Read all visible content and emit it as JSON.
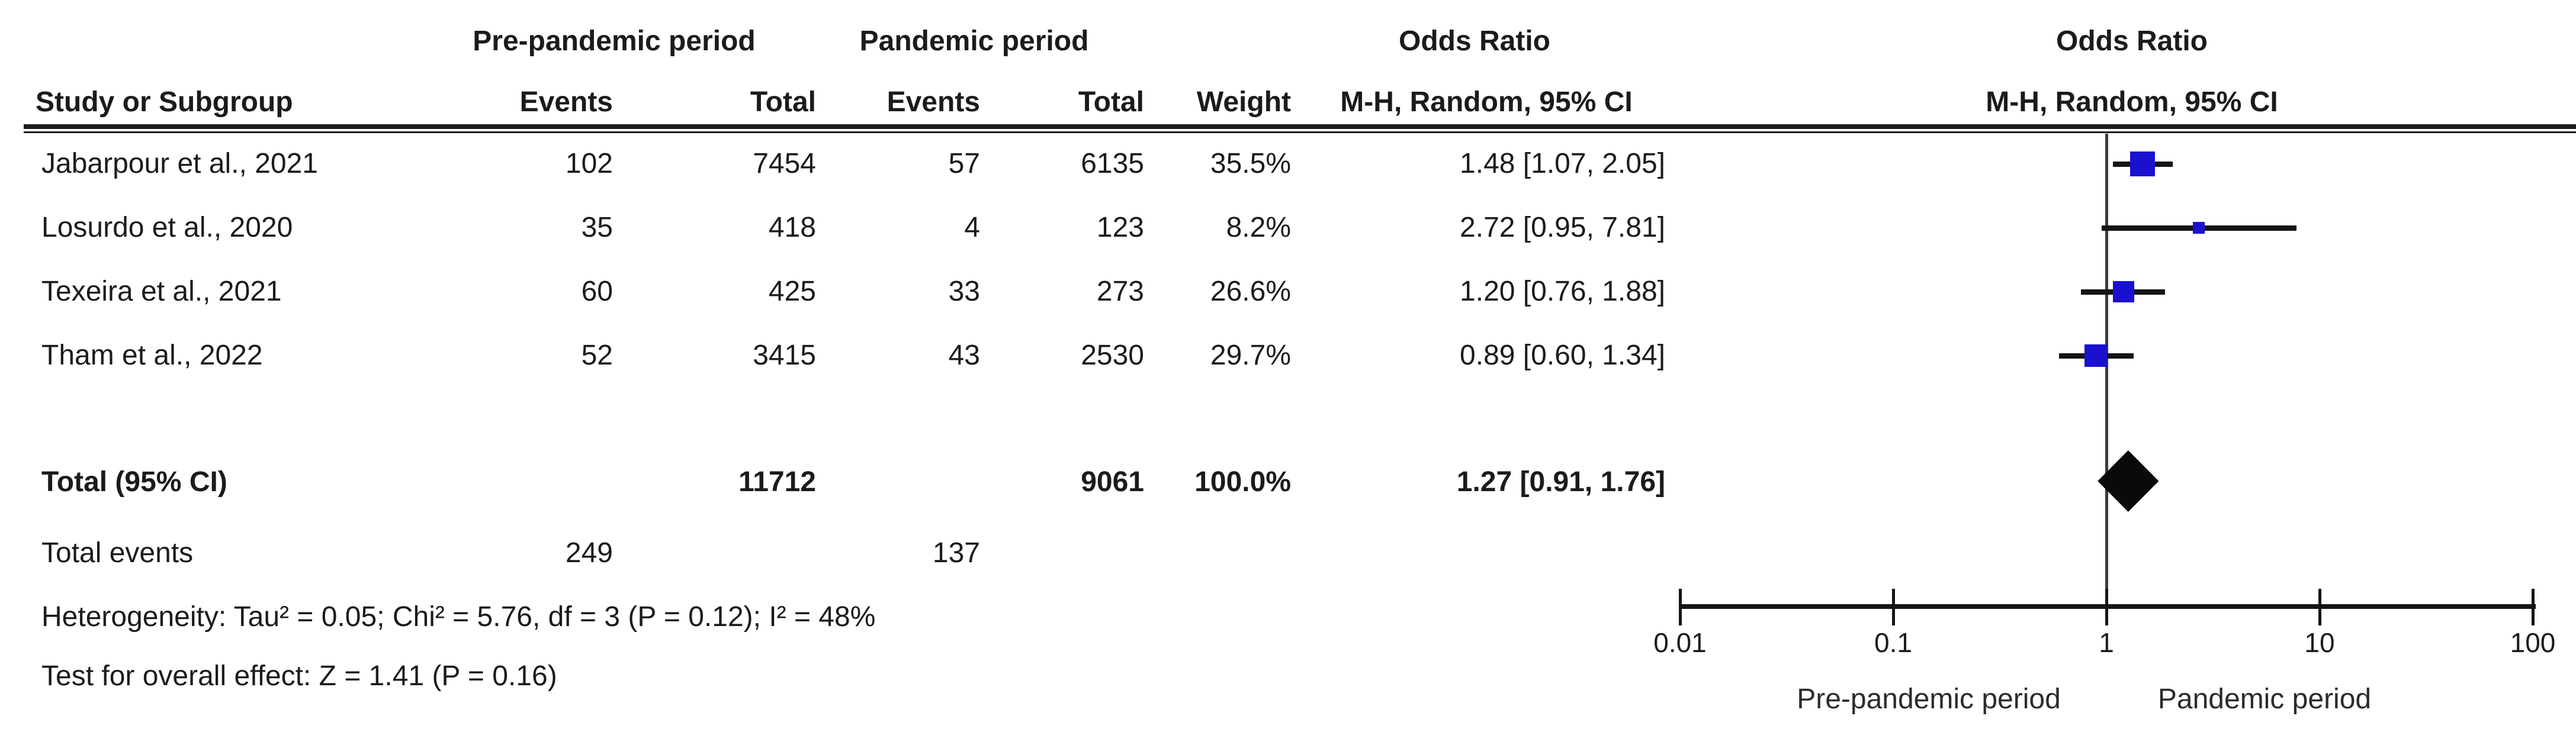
{
  "colors": {
    "square_blue": "#1a10d0",
    "ci_line": "#141414",
    "diamond": "#0a0a0a",
    "axis_line": "#151515",
    "center_line": "#3a3a3a",
    "text": "#1b1b1b"
  },
  "table": {
    "group1_header": "Pre-pandemic period",
    "group2_header": "Pandemic period",
    "or_header": "Odds Ratio",
    "or_subheader": "M-H, Random, 95% CI",
    "plot_or_header": "Odds Ratio",
    "plot_or_subheader": "M-H, Random, 95% CI",
    "col_study": "Study or Subgroup",
    "col_events1": "Events",
    "col_total1": "Total",
    "col_events2": "Events",
    "col_total2": "Total",
    "col_weight": "Weight",
    "rows": [
      {
        "study": "Jabarpour et al., 2021",
        "events1": "102",
        "total1": "7454",
        "events2": "57",
        "total2": "6135",
        "weight": "35.5%",
        "or_ci": "1.48 [1.07, 2.05]"
      },
      {
        "study": "Losurdo et al., 2020",
        "events1": "35",
        "total1": "418",
        "events2": "4",
        "total2": "123",
        "weight": "8.2%",
        "or_ci": "2.72 [0.95, 7.81]"
      },
      {
        "study": "Texeira et al., 2021",
        "events1": "60",
        "total1": "425",
        "events2": "33",
        "total2": "273",
        "weight": "26.6%",
        "or_ci": "1.20 [0.76, 1.88]"
      },
      {
        "study": "Tham et al., 2022",
        "events1": "52",
        "total1": "3415",
        "events2": "43",
        "total2": "2530",
        "weight": "29.7%",
        "or_ci": "0.89 [0.60, 1.34]"
      }
    ],
    "total_row": {
      "label": "Total (95% CI)",
      "total1": "11712",
      "total2": "9061",
      "weight": "100.0%",
      "or_ci": "1.27 [0.91, 1.76]"
    },
    "total_events": {
      "label": "Total events",
      "events1": "249",
      "events2": "137"
    },
    "heterogeneity": "Heterogeneity: Tau² = 0.05; Chi² = 5.76, df = 3 (P = 0.12); I² = 48%",
    "overall_effect": "Test for overall effect: Z = 1.41 (P = 0.16)"
  },
  "chart_data": {
    "type": "forest",
    "x_scale": "log10",
    "xlim": [
      0.01,
      100
    ],
    "axis_ticks": [
      0.01,
      0.1,
      1,
      10,
      100
    ],
    "axis_tick_labels": [
      "0.01",
      "0.1",
      "1",
      "10",
      "100"
    ],
    "null_line": 1,
    "favours_left": "Pre-pandemic period",
    "favours_right": "Pandemic period",
    "effect_measure": "Odds Ratio (M-H, Random, 95% CI)",
    "studies": [
      {
        "name": "Jabarpour et al., 2021",
        "or": 1.48,
        "ci_low": 1.07,
        "ci_high": 2.05,
        "weight_pct": 35.5
      },
      {
        "name": "Losurdo et al., 2020",
        "or": 2.72,
        "ci_low": 0.95,
        "ci_high": 7.81,
        "weight_pct": 8.2
      },
      {
        "name": "Texeira et al., 2021",
        "or": 1.2,
        "ci_low": 0.76,
        "ci_high": 1.88,
        "weight_pct": 26.6
      },
      {
        "name": "Tham et al., 2022",
        "or": 0.89,
        "ci_low": 0.6,
        "ci_high": 1.34,
        "weight_pct": 29.7
      }
    ],
    "total": {
      "or": 1.27,
      "ci_low": 0.91,
      "ci_high": 1.76,
      "weight_pct": 100.0
    }
  }
}
